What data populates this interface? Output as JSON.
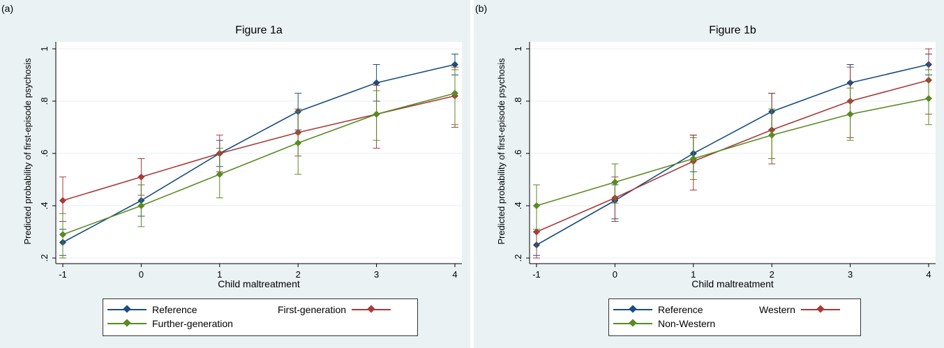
{
  "chart_data": [
    {
      "panel": "(a)",
      "type": "line",
      "title": "Figure 1a",
      "xlabel": "Child maltreatment",
      "ylabel": "Predicted probability of first-episode psychosis",
      "x": [
        -1,
        0,
        1,
        2,
        3,
        4
      ],
      "xticks": [
        "-1",
        "0",
        "1",
        "2",
        "3",
        "4"
      ],
      "yticks": [
        ".2",
        ".4",
        ".6",
        ".8",
        "1"
      ],
      "xlim": [
        -1,
        4
      ],
      "ylim": [
        0.2,
        1.0
      ],
      "grid": true,
      "legend_position": "bottom",
      "series": [
        {
          "name": "Reference",
          "color": "#1a4d80",
          "values": [
            0.26,
            0.42,
            0.6,
            0.76,
            0.87,
            0.94
          ],
          "lower": [
            0.21,
            0.36,
            0.55,
            0.69,
            0.8,
            0.9
          ],
          "upper": [
            0.31,
            0.48,
            0.65,
            0.83,
            0.94,
            0.98
          ]
        },
        {
          "name": "First-generation",
          "color": "#a93a3a",
          "values": [
            0.42,
            0.51,
            0.6,
            0.68,
            0.75,
            0.82
          ],
          "lower": [
            0.34,
            0.44,
            0.53,
            0.59,
            0.62,
            0.7
          ],
          "upper": [
            0.51,
            0.58,
            0.67,
            0.77,
            0.86,
            0.93
          ]
        },
        {
          "name": "Further-generation",
          "color": "#5a8a22",
          "values": [
            0.29,
            0.4,
            0.52,
            0.64,
            0.75,
            0.83
          ],
          "lower": [
            0.2,
            0.32,
            0.43,
            0.52,
            0.65,
            0.71
          ],
          "upper": [
            0.37,
            0.48,
            0.62,
            0.76,
            0.84,
            0.92
          ]
        }
      ]
    },
    {
      "panel": "(b)",
      "type": "line",
      "title": "Figure 1b",
      "xlabel": "Child maltreatment",
      "ylabel": "Predicted probability of first-episode psychosis",
      "x": [
        -1,
        0,
        1,
        2,
        3,
        4
      ],
      "xticks": [
        "-1",
        "0",
        "1",
        "2",
        "3",
        "4"
      ],
      "yticks": [
        ".2",
        ".4",
        ".6",
        ".8",
        "1"
      ],
      "xlim": [
        -1,
        4
      ],
      "ylim": [
        0.2,
        1.0
      ],
      "grid": true,
      "legend_position": "bottom",
      "series": [
        {
          "name": "Reference",
          "color": "#1a4d80",
          "values": [
            0.25,
            0.42,
            0.6,
            0.76,
            0.87,
            0.94
          ],
          "lower": [
            0.21,
            0.35,
            0.53,
            0.69,
            0.8,
            0.9
          ],
          "upper": [
            0.3,
            0.48,
            0.67,
            0.83,
            0.94,
            0.98
          ]
        },
        {
          "name": "Western",
          "color": "#a93a3a",
          "values": [
            0.3,
            0.43,
            0.57,
            0.69,
            0.8,
            0.88
          ],
          "lower": [
            0.2,
            0.34,
            0.46,
            0.56,
            0.66,
            0.75
          ],
          "upper": [
            0.4,
            0.51,
            0.67,
            0.83,
            0.93,
            1.0
          ]
        },
        {
          "name": "Non-Western",
          "color": "#5a8a22",
          "values": [
            0.4,
            0.49,
            0.58,
            0.67,
            0.75,
            0.81
          ],
          "lower": [
            0.31,
            0.41,
            0.5,
            0.58,
            0.65,
            0.71
          ],
          "upper": [
            0.48,
            0.56,
            0.66,
            0.77,
            0.85,
            0.92
          ]
        }
      ]
    }
  ]
}
